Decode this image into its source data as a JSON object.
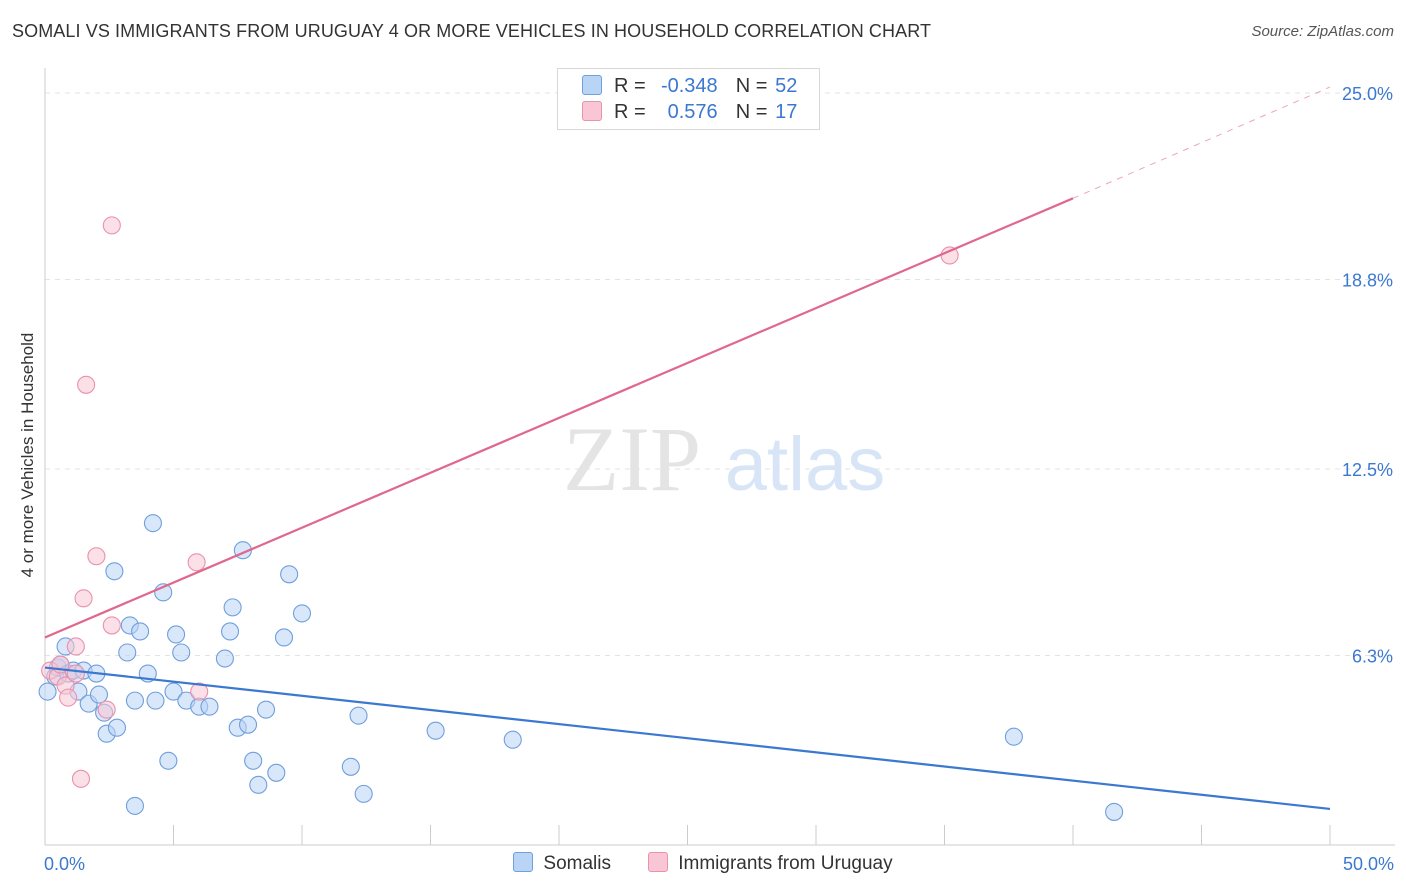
{
  "title": "SOMALI VS IMMIGRANTS FROM URUGUAY 4 OR MORE VEHICLES IN HOUSEHOLD CORRELATION CHART",
  "source": "Source: ZipAtlas.com",
  "watermark": {
    "zip": "ZIP",
    "atlas": "atlas"
  },
  "legend_top": {
    "rows": [
      {
        "r_label": "R =",
        "r_value": "-0.348",
        "n_label": "N =",
        "n_value": "52",
        "color": "#6f9fdc"
      },
      {
        "r_label": "R =",
        "r_value": "0.576",
        "n_label": "N =",
        "n_value": "17",
        "color": "#e991ad"
      }
    ]
  },
  "legend_bottom": [
    "Somalis",
    "Immigrants from Uruguay"
  ],
  "chart_data": {
    "type": "scatter",
    "xlabel": "",
    "ylabel": "4 or more Vehicles in Household",
    "xlim": [
      0,
      50
    ],
    "ylim": [
      0,
      25.5
    ],
    "x_tick_labels": [
      "0.0%",
      "50.0%"
    ],
    "y_ticks": [
      6.3,
      12.5,
      18.8,
      25.0
    ],
    "y_tick_labels": [
      "6.3%",
      "12.5%",
      "18.8%",
      "25.0%"
    ],
    "grid": true,
    "series": [
      {
        "name": "Somalis",
        "color": "#6f9fdc",
        "fill": "#b9d4f5",
        "points": [
          [
            0.1,
            5.1
          ],
          [
            0.4,
            5.6
          ],
          [
            0.5,
            5.9
          ],
          [
            0.6,
            6.0
          ],
          [
            0.8,
            6.6
          ],
          [
            0.9,
            5.7
          ],
          [
            1.1,
            5.8
          ],
          [
            1.3,
            5.1
          ],
          [
            1.5,
            5.8
          ],
          [
            1.7,
            4.7
          ],
          [
            2.0,
            5.7
          ],
          [
            2.1,
            5.0
          ],
          [
            2.3,
            4.4
          ],
          [
            2.4,
            3.7
          ],
          [
            2.8,
            3.9
          ],
          [
            2.7,
            9.1
          ],
          [
            3.2,
            6.4
          ],
          [
            3.3,
            7.3
          ],
          [
            3.7,
            7.1
          ],
          [
            3.5,
            1.3
          ],
          [
            3.5,
            4.8
          ],
          [
            4.0,
            5.7
          ],
          [
            4.2,
            10.7
          ],
          [
            4.3,
            4.8
          ],
          [
            4.6,
            8.4
          ],
          [
            4.8,
            2.8
          ],
          [
            5.0,
            5.1
          ],
          [
            5.1,
            7.0
          ],
          [
            5.3,
            6.4
          ],
          [
            5.5,
            4.8
          ],
          [
            6.0,
            4.6
          ],
          [
            6.4,
            4.6
          ],
          [
            7.0,
            6.2
          ],
          [
            7.2,
            7.1
          ],
          [
            7.3,
            7.9
          ],
          [
            7.5,
            3.9
          ],
          [
            7.7,
            9.8
          ],
          [
            7.9,
            4.0
          ],
          [
            8.1,
            2.8
          ],
          [
            8.3,
            2.0
          ],
          [
            8.6,
            4.5
          ],
          [
            9.0,
            2.4
          ],
          [
            9.3,
            6.9
          ],
          [
            9.5,
            9.0
          ],
          [
            10.0,
            7.7
          ],
          [
            11.9,
            2.6
          ],
          [
            12.2,
            4.3
          ],
          [
            12.4,
            1.7
          ],
          [
            15.2,
            3.8
          ],
          [
            18.2,
            3.5
          ],
          [
            37.7,
            3.6
          ],
          [
            41.6,
            1.1
          ]
        ]
      },
      {
        "name": "Immigrants from Uruguay",
        "color": "#e991ad",
        "fill": "#f8c6d4",
        "points": [
          [
            0.2,
            5.8
          ],
          [
            0.5,
            5.6
          ],
          [
            0.6,
            6.0
          ],
          [
            0.8,
            5.3
          ],
          [
            0.9,
            4.9
          ],
          [
            1.2,
            5.7
          ],
          [
            1.2,
            6.6
          ],
          [
            1.4,
            2.2
          ],
          [
            1.5,
            8.2
          ],
          [
            1.6,
            15.3
          ],
          [
            2.0,
            9.6
          ],
          [
            2.4,
            4.5
          ],
          [
            2.6,
            7.3
          ],
          [
            2.6,
            20.6
          ],
          [
            5.9,
            9.4
          ],
          [
            6.0,
            5.1
          ],
          [
            35.2,
            19.6
          ]
        ]
      }
    ],
    "trend_lines": [
      {
        "series": "Somalis",
        "color": "#3b78d0",
        "x": [
          0,
          50
        ],
        "y": [
          5.9,
          1.2
        ],
        "dashed_extension": false
      },
      {
        "series": "Immigrants from Uruguay",
        "color": "#e0678e",
        "x": [
          0,
          40
        ],
        "y": [
          6.9,
          21.5
        ],
        "dashed_to": [
          50,
          25.2
        ]
      }
    ]
  }
}
